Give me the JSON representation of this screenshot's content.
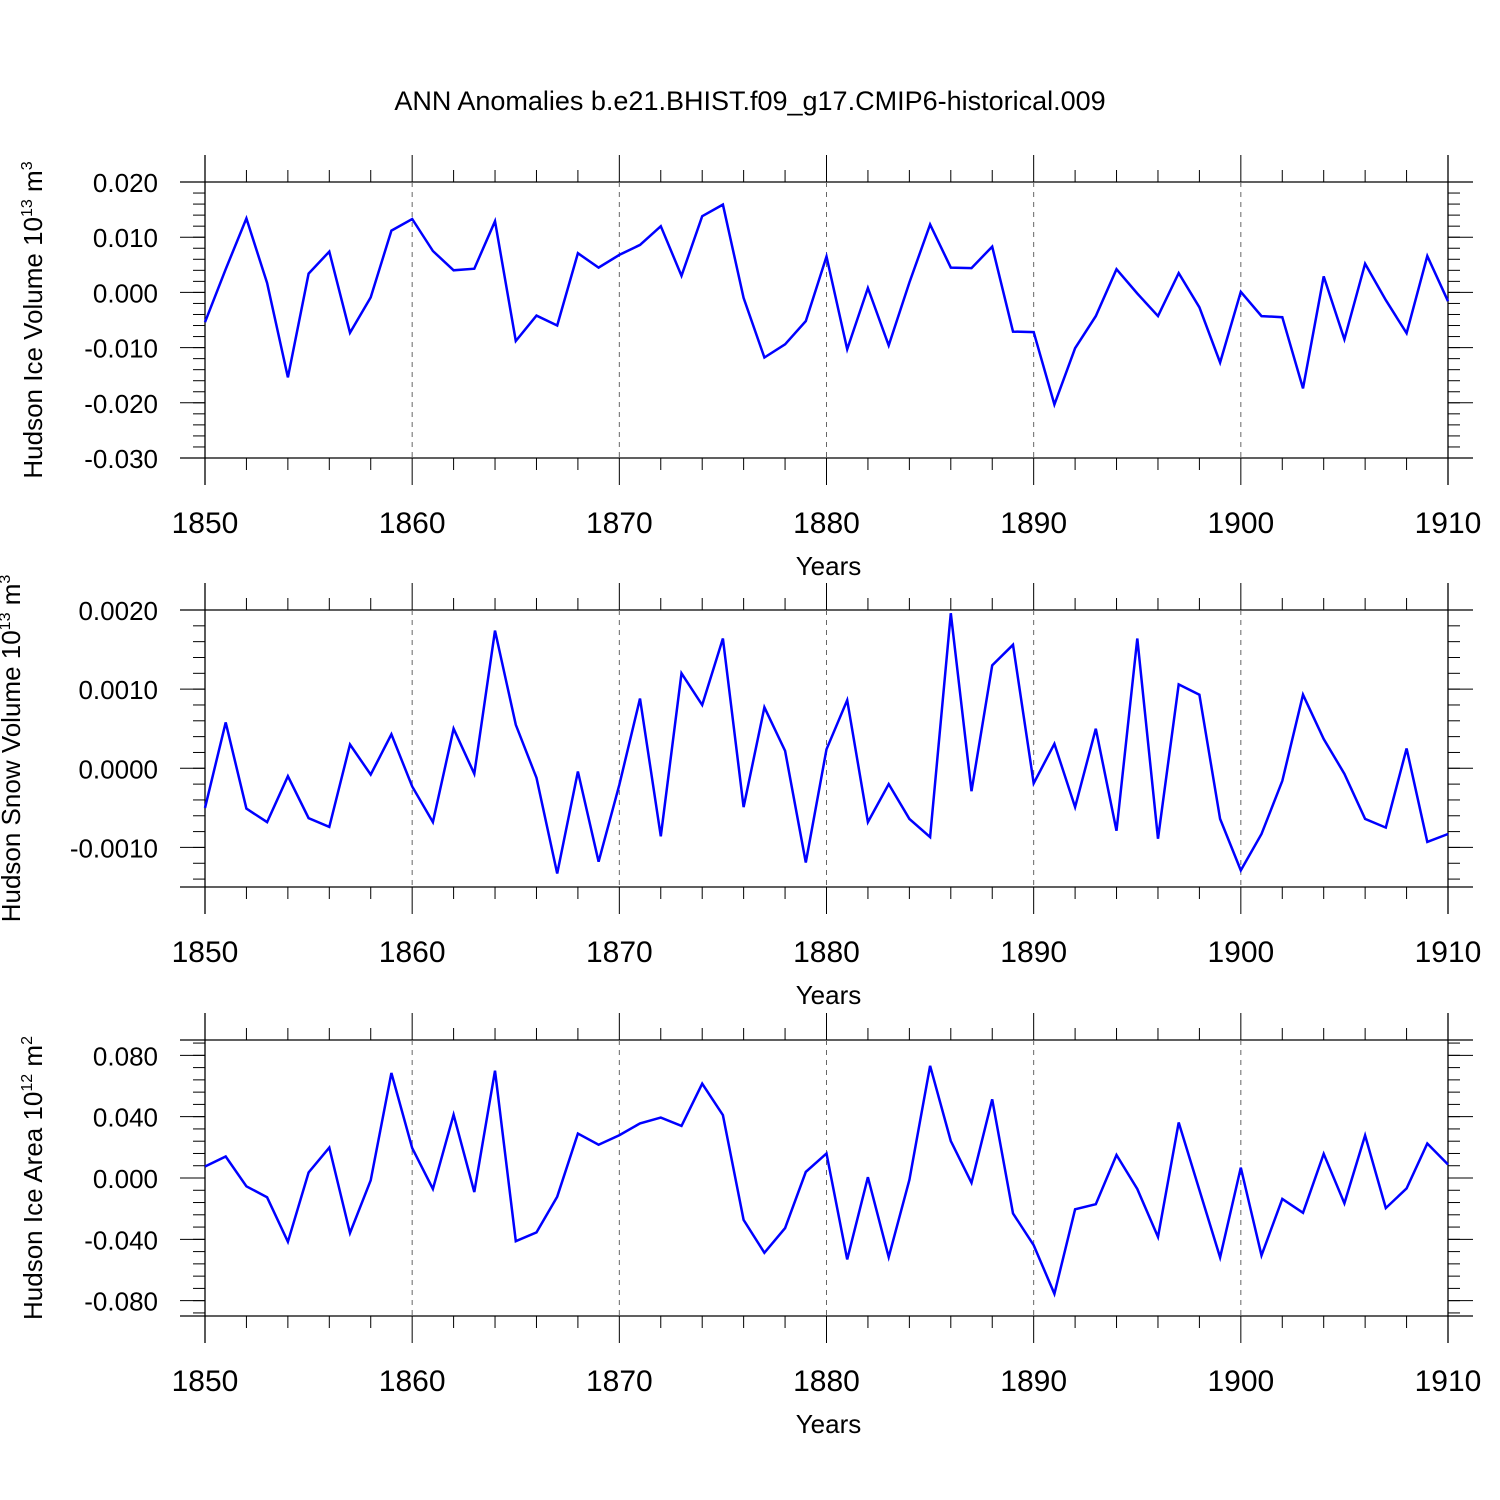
{
  "title": "ANN Anomalies b.e21.BHIST.f09_g17.CMIP6-historical.009",
  "chart_data": [
    {
      "type": "line",
      "name": "ice-volume",
      "ylabel": "Hudson Ice Volume 10",
      "ylabel_exp": "13",
      "ylabel_unit": " m",
      "ylabel_unit_exp": "3",
      "xlabel": "Years",
      "xlim": [
        1850,
        1910
      ],
      "ylim": [
        -0.03,
        0.02
      ],
      "xticks": [
        1850,
        1860,
        1870,
        1880,
        1890,
        1900,
        1910
      ],
      "xtick_labels": [
        "1850",
        "1860",
        "1870",
        "1880",
        "1890",
        "1900",
        "1910"
      ],
      "yticks": [
        -0.03,
        -0.02,
        -0.01,
        0.0,
        0.01,
        0.02
      ],
      "ytick_labels": [
        "-0.030",
        "-0.020",
        "-0.010",
        "0.000",
        "0.010",
        "0.020"
      ],
      "yminor_step": 0.002,
      "frame_ymin": -0.03,
      "frame_ymax": 0.02,
      "x": [
        1850,
        1851,
        1852,
        1853,
        1854,
        1855,
        1856,
        1857,
        1858,
        1859,
        1860,
        1861,
        1862,
        1863,
        1864,
        1865,
        1866,
        1867,
        1868,
        1869,
        1870,
        1871,
        1872,
        1873,
        1874,
        1875,
        1876,
        1877,
        1878,
        1879,
        1880,
        1881,
        1882,
        1883,
        1884,
        1885,
        1886,
        1887,
        1888,
        1889,
        1890,
        1891,
        1892,
        1893,
        1894,
        1895,
        1896,
        1897,
        1898,
        1899,
        1900,
        1901,
        1902,
        1903,
        1904,
        1905,
        1906,
        1907,
        1908,
        1909,
        1910
      ],
      "values": [
        -0.0054,
        0.0042,
        0.0134,
        0.0017,
        -0.0154,
        0.0034,
        0.0074,
        -0.0073,
        -0.0009,
        0.0112,
        0.0133,
        0.0075,
        0.004,
        0.0043,
        0.0129,
        -0.0088,
        -0.0042,
        -0.006,
        0.0071,
        0.0045,
        0.0068,
        0.0086,
        0.012,
        0.003,
        0.0138,
        0.0159,
        -0.001,
        -0.0118,
        -0.0094,
        -0.0052,
        0.0065,
        -0.0103,
        0.0008,
        -0.0096,
        0.0018,
        0.0123,
        0.0045,
        0.0044,
        0.0083,
        -0.0071,
        -0.0072,
        -0.0203,
        -0.0101,
        -0.0043,
        0.0042,
        -0.0002,
        -0.0043,
        0.0035,
        -0.0027,
        -0.0127,
        0.0001,
        -0.0043,
        -0.0045,
        -0.0174,
        0.0029,
        -0.0085,
        0.0052,
        -0.0014,
        -0.0074,
        0.0066,
        -0.0016
      ]
    },
    {
      "type": "line",
      "name": "snow-volume",
      "ylabel": "Hudson Snow Volume 10",
      "ylabel_exp": "13",
      "ylabel_unit": " m",
      "ylabel_unit_exp": "3",
      "xlabel": "Years",
      "xlim": [
        1850,
        1910
      ],
      "ylim": [
        -0.0015,
        0.002
      ],
      "xticks": [
        1850,
        1860,
        1870,
        1880,
        1890,
        1900,
        1910
      ],
      "xtick_labels": [
        "1850",
        "1860",
        "1870",
        "1880",
        "1890",
        "1900",
        "1910"
      ],
      "yticks": [
        -0.001,
        0.0,
        0.001,
        0.002
      ],
      "ytick_labels": [
        "-0.0010",
        "0.0000",
        "0.0010",
        "0.0020"
      ],
      "yminor_step": 0.0002,
      "frame_ymin": -0.0015,
      "frame_ymax": 0.002,
      "x": [
        1850,
        1851,
        1852,
        1853,
        1854,
        1855,
        1856,
        1857,
        1858,
        1859,
        1860,
        1861,
        1862,
        1863,
        1864,
        1865,
        1866,
        1867,
        1868,
        1869,
        1870,
        1871,
        1872,
        1873,
        1874,
        1875,
        1876,
        1877,
        1878,
        1879,
        1880,
        1881,
        1882,
        1883,
        1884,
        1885,
        1886,
        1887,
        1888,
        1889,
        1890,
        1891,
        1892,
        1893,
        1894,
        1895,
        1896,
        1897,
        1898,
        1899,
        1900,
        1901,
        1902,
        1903,
        1904,
        1905,
        1906,
        1907,
        1908,
        1909,
        1910
      ],
      "values": [
        -0.0005,
        0.00058,
        -0.00051,
        -0.00068,
        -0.0001,
        -0.00063,
        -0.00074,
        0.0003,
        -8e-05,
        0.00043,
        -0.00023,
        -0.00068,
        0.0005,
        -7e-05,
        0.00174,
        0.00055,
        -0.00012,
        -0.00133,
        -4e-05,
        -0.00118,
        -0.00021,
        0.00088,
        -0.00086,
        0.0012,
        0.0008,
        0.00164,
        -0.00049,
        0.00077,
        0.00022,
        -0.00119,
        0.00024,
        0.00086,
        -0.00068,
        -0.0002,
        -0.00064,
        -0.00087,
        0.00196,
        -0.00029,
        0.0013,
        0.00156,
        -0.00019,
        0.00031,
        -0.00049,
        0.0005,
        -0.00079,
        0.00164,
        -0.00089,
        0.00106,
        0.00093,
        -0.00064,
        -0.00129,
        -0.00083,
        -0.00016,
        0.00093,
        0.00037,
        -7e-05,
        -0.00064,
        -0.00075,
        0.00025,
        -0.00093,
        -0.00083
      ]
    },
    {
      "type": "line",
      "name": "ice-area",
      "ylabel": "Hudson Ice Area 10",
      "ylabel_exp": "12",
      "ylabel_unit": " m",
      "ylabel_unit_exp": "2",
      "xlabel": "Years",
      "xlim": [
        1850,
        1910
      ],
      "ylim": [
        -0.09,
        0.09
      ],
      "xticks": [
        1850,
        1860,
        1870,
        1880,
        1890,
        1900,
        1910
      ],
      "xtick_labels": [
        "1850",
        "1860",
        "1870",
        "1880",
        "1890",
        "1900",
        "1910"
      ],
      "yticks": [
        -0.08,
        -0.04,
        0.0,
        0.04,
        0.08
      ],
      "ytick_labels": [
        "-0.080",
        "-0.040",
        "0.000",
        "0.040",
        "0.080"
      ],
      "yminor_step": 0.008,
      "frame_ymin": -0.09,
      "frame_ymax": 0.09,
      "x": [
        1850,
        1851,
        1852,
        1853,
        1854,
        1855,
        1856,
        1857,
        1858,
        1859,
        1860,
        1861,
        1862,
        1863,
        1864,
        1865,
        1866,
        1867,
        1868,
        1869,
        1870,
        1871,
        1872,
        1873,
        1874,
        1875,
        1876,
        1877,
        1878,
        1879,
        1880,
        1881,
        1882,
        1883,
        1884,
        1885,
        1886,
        1887,
        1888,
        1889,
        1890,
        1891,
        1892,
        1893,
        1894,
        1895,
        1896,
        1897,
        1898,
        1899,
        1900,
        1901,
        1902,
        1903,
        1904,
        1905,
        1906,
        1907,
        1908,
        1909,
        1910
      ],
      "values": [
        0.0075,
        0.014,
        -0.0054,
        -0.0126,
        -0.0416,
        0.0036,
        0.0198,
        -0.0359,
        -0.0015,
        0.0685,
        0.0195,
        -0.0071,
        0.0413,
        -0.0091,
        0.07,
        -0.0412,
        -0.0355,
        -0.0122,
        0.029,
        0.0217,
        0.0279,
        0.0356,
        0.0394,
        0.034,
        0.0615,
        0.041,
        -0.0273,
        -0.0488,
        -0.0327,
        0.004,
        0.016,
        -0.0531,
        0.0005,
        -0.0516,
        -0.0012,
        0.0732,
        0.0241,
        -0.0031,
        0.0513,
        -0.0231,
        -0.0438,
        -0.0755,
        -0.0204,
        -0.0171,
        0.015,
        -0.0072,
        -0.0385,
        0.0362,
        -0.0078,
        -0.0518,
        0.0068,
        -0.0505,
        -0.0136,
        -0.0227,
        0.0158,
        -0.0165,
        0.0278,
        -0.0196,
        -0.0068,
        0.0225,
        0.0088
      ]
    }
  ]
}
